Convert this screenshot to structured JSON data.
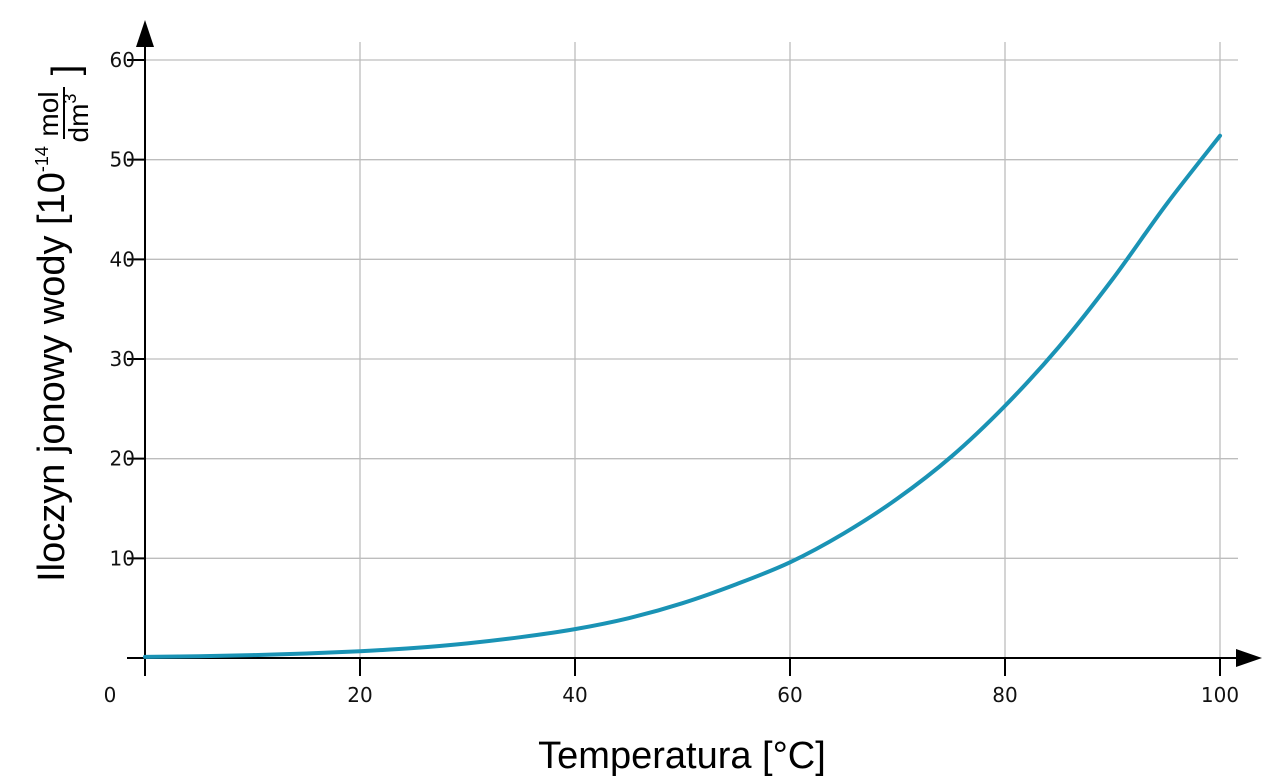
{
  "chart_data": {
    "type": "line",
    "xlabel": "Temperatura [°C]",
    "ylabel": {
      "main": "Iloczyn jonowy wody [10",
      "exponent": "-14",
      "unit_numerator": "mol",
      "unit_denominator": "dm",
      "unit_denominator_exponent": "3",
      "close_bracket": "]"
    },
    "xlim": [
      0,
      100
    ],
    "ylim": [
      0,
      60
    ],
    "x_ticks": [
      "20",
      "40",
      "60",
      "80",
      "100"
    ],
    "x_tick_values": [
      20,
      40,
      60,
      80,
      100
    ],
    "y_ticks": [
      "10",
      "20",
      "30",
      "40",
      "50",
      "60"
    ],
    "y_tick_values": [
      10,
      20,
      30,
      40,
      50,
      60
    ],
    "origin_label": "0",
    "grid": true,
    "line_color": "#1a93b5",
    "series": [
      {
        "x": [
          0,
          5,
          10,
          15,
          20,
          25,
          30,
          35,
          40,
          45,
          50,
          55,
          60,
          65,
          70,
          75,
          80,
          85,
          90,
          95,
          100
        ],
        "values": [
          0.11,
          0.18,
          0.29,
          0.45,
          0.68,
          1.0,
          1.47,
          2.1,
          2.9,
          4.0,
          5.5,
          7.4,
          9.6,
          12.5,
          16.0,
          20.2,
          25.3,
          31.2,
          38.0,
          45.5,
          52.4
        ]
      }
    ]
  }
}
